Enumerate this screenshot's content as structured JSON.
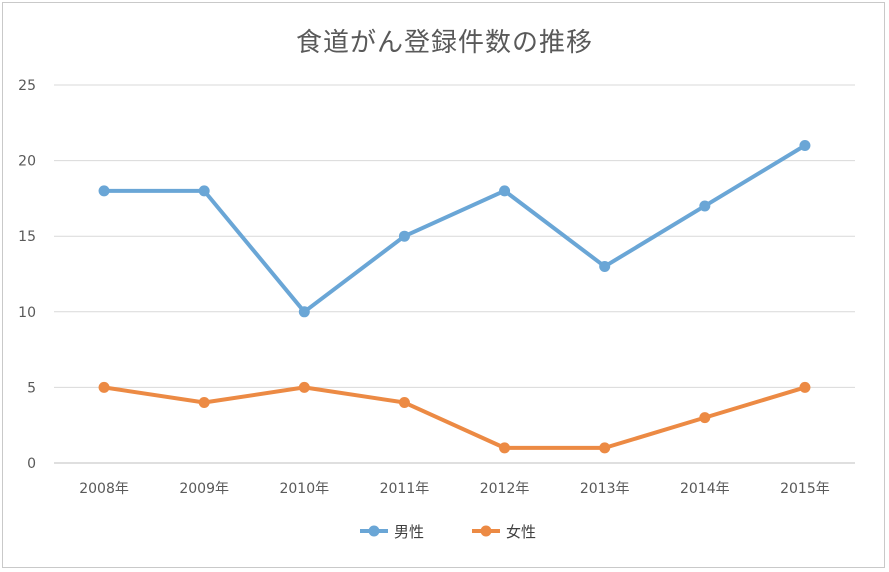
{
  "chart_data": {
    "type": "line",
    "title": "食道がん登録件数の推移",
    "categories": [
      "2008年",
      "2009年",
      "2010年",
      "2011年",
      "2012年",
      "2013年",
      "2014年",
      "2015年"
    ],
    "series": [
      {
        "name": "男性",
        "values": [
          18,
          18,
          10,
          15,
          18,
          13,
          17,
          21
        ],
        "color": "#6aa6d6"
      },
      {
        "name": "女性",
        "values": [
          5,
          4,
          5,
          4,
          1,
          1,
          3,
          5
        ],
        "color": "#ec8a44"
      }
    ],
    "ylim": [
      0,
      25
    ],
    "yticks": [
      0,
      5,
      10,
      15,
      20,
      25
    ],
    "grid": true,
    "legend": "bottom"
  }
}
